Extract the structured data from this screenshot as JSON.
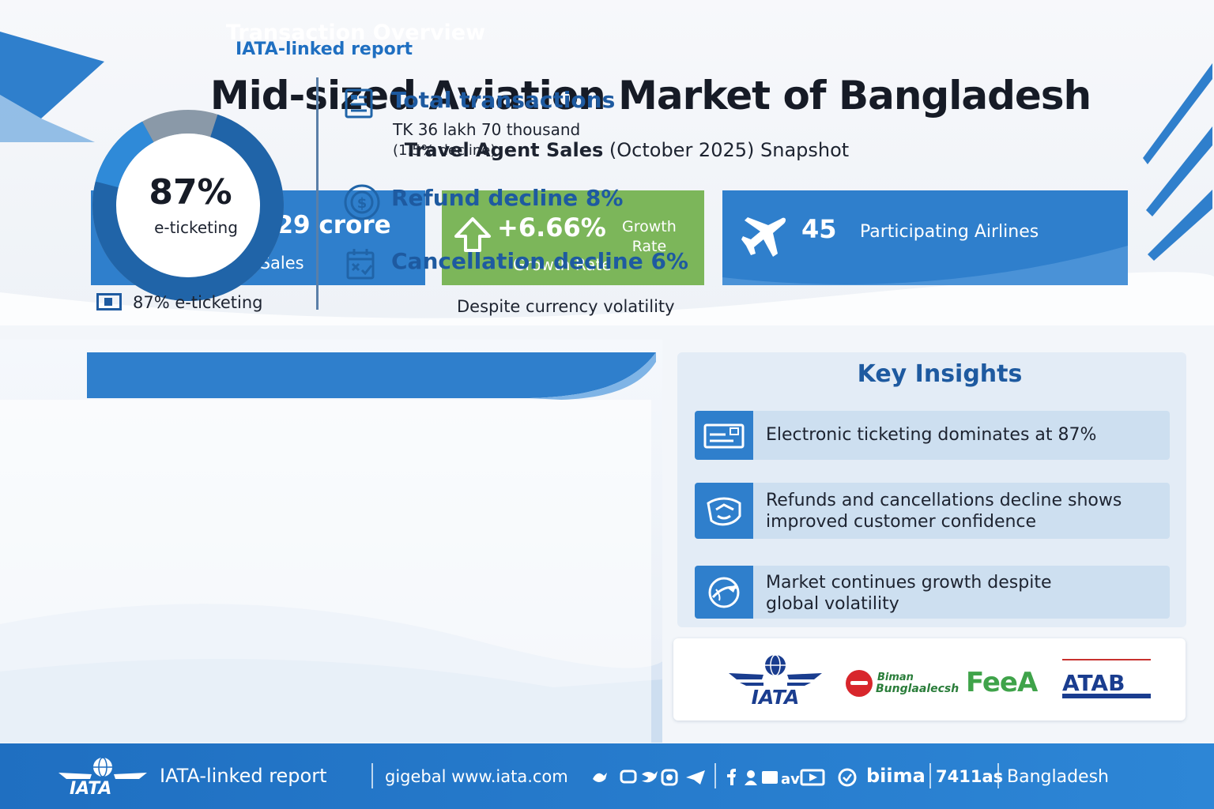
{
  "header": {
    "report_tag": "IATA-linked report",
    "title": "Mid-sized Aviation Market of Bangladesh",
    "subtitle_bold": "Travel Agent Sales",
    "subtitle_rest": " (October 2025) Snapshot"
  },
  "kpis": {
    "sales": {
      "value": "TK 13,629 crore",
      "label": "Total Sales",
      "icon": "money-bag-icon"
    },
    "growth": {
      "value": "+6.66%",
      "side_label_1": "Growth",
      "side_label_2": "Rate",
      "label": "Growth Rate",
      "icon": "up-arrow-icon"
    },
    "airlines": {
      "value": "45",
      "label": "Participating Airlines",
      "icon": "airplane-icon"
    }
  },
  "caveat": "Despite currency volatility",
  "transactions": {
    "title": "Transaction Overview",
    "donut": {
      "value": "87%",
      "label": "e-ticketing",
      "share_percent": 87
    },
    "legend_label": "87% e-ticketing",
    "total": {
      "title": "Total transactions",
      "value": "TK 36 lakh 70 thousand",
      "note": "(1.5% decline)"
    },
    "refund": {
      "title": "Refund decline 8%"
    },
    "cancel": {
      "title": "Cancellation decline 6%"
    }
  },
  "insights": {
    "title": "Key Insights",
    "items": [
      {
        "line1": "Electronic ticketing dominates at 87%",
        "line2": "",
        "icon": "ticket-icon"
      },
      {
        "line1": "Refunds and cancellations decline shows",
        "line2": "improved customer confidence",
        "icon": "handshake-icon"
      },
      {
        "line1": "Market continues growth despite",
        "line2": "global volatility",
        "icon": "globe-plane-icon"
      }
    ]
  },
  "partners": {
    "iata": "IATA",
    "biman_1": "Biman",
    "biman_2": "Bunglaalecsh",
    "green": "FeeA",
    "atab": "ATAB"
  },
  "footer": {
    "logo_text": "IATA",
    "report": "IATA-linked report",
    "site": "gigebal www.iata.com",
    "biima": "biima",
    "tias": "7411as",
    "country": "Bangladesh"
  },
  "colors": {
    "brand_blue": "#2f7fcc",
    "growth_green": "#7cb65a",
    "dark_blue": "#1e5aa0"
  }
}
